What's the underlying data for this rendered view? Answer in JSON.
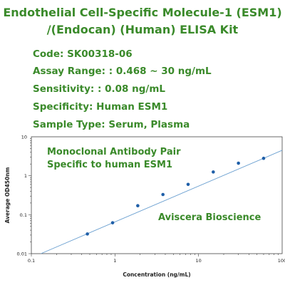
{
  "header": {
    "title_line1": "Endothelial Cell-Specific Molecule-1 (ESM1)",
    "title_line2": "/(Endocan) (Human) ELISA Kit",
    "code": "Code: SK00318-06",
    "assay_range": "Assay Range: : 0.468 ~ 30 ng/mL",
    "sensitivity": "Sensitivity: : 0.08 ng/mL",
    "specificity": "Specificity: Human ESM1",
    "sample_type": "Sample Type: Serum, Plasma"
  },
  "colors": {
    "title_green": "#3a8a2a",
    "point_blue": "#1f5fa8",
    "line_blue": "#6a9fd0"
  },
  "chart_data": {
    "type": "scatter",
    "title": "",
    "xlabel": "Concentration (ng/mL)",
    "ylabel": "Average OD450nm",
    "x_scale": "log",
    "y_scale": "log",
    "xlim": [
      0.1,
      100
    ],
    "ylim": [
      0.01,
      10
    ],
    "x_ticks": [
      "0.1",
      "1",
      "10",
      "100"
    ],
    "y_ticks": [
      "0.01",
      "0.1",
      "1",
      "10"
    ],
    "grid": false,
    "series": [
      {
        "x": [
          0.468,
          0.9375,
          1.875,
          3.75,
          7.5,
          15,
          30,
          60
        ],
        "y": [
          0.032,
          0.062,
          0.17,
          0.33,
          0.6,
          1.25,
          2.1,
          2.8
        ]
      }
    ],
    "fit_line": {
      "x": [
        0.13,
        100
      ],
      "y": [
        0.01,
        4.5
      ]
    },
    "annotations": [
      "Monoclonal Antibody Pair",
      "Specific to human ESM1",
      "Aviscera Bioscience"
    ]
  }
}
